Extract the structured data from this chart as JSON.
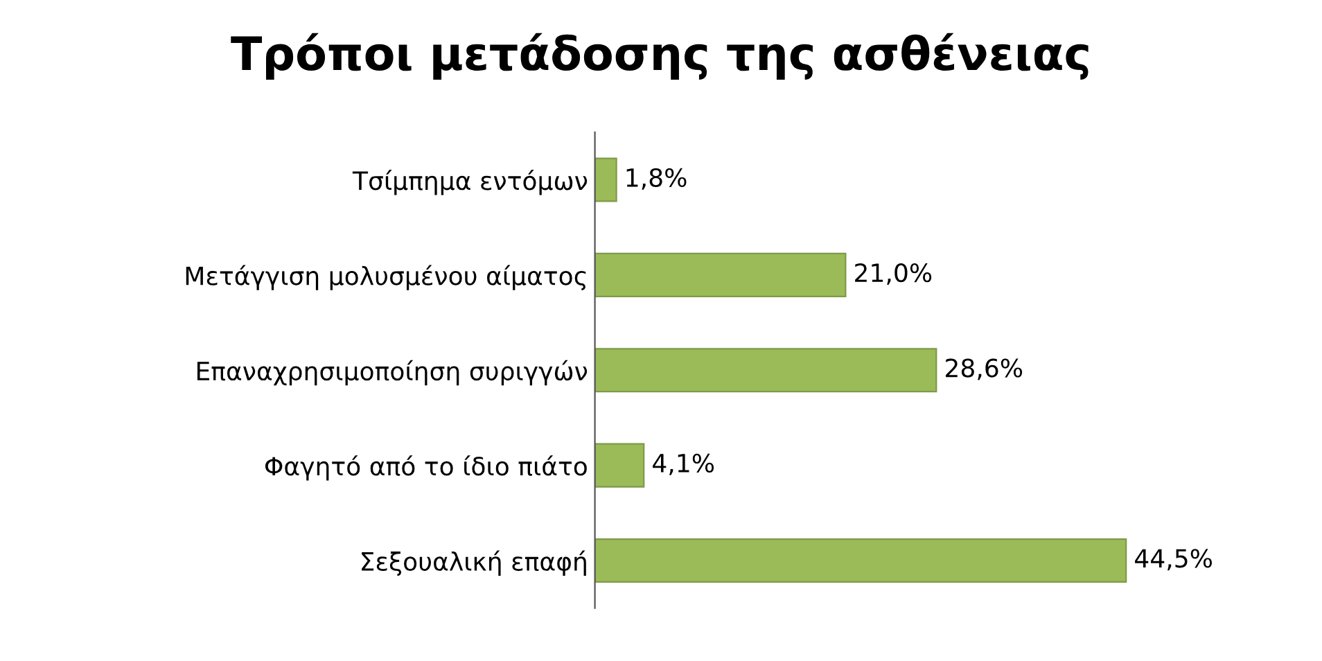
{
  "chart_data": {
    "type": "bar",
    "orientation": "horizontal",
    "title": "Τρόποι μετάδοσης της ασθένειας",
    "categories": [
      "Τσίμπημα εντόμων",
      "Μετάγγιση μολυσμένου αίματος",
      "Επαναχρησιμοποίηση συριγγών",
      "Φαγητό από το ίδιο πιάτο",
      "Σεξουαλική επαφή"
    ],
    "values": [
      1.8,
      21.0,
      28.6,
      4.1,
      44.5
    ],
    "value_labels": [
      "1,8%",
      "21,0%",
      "28,6%",
      "4,1%",
      "44,5%"
    ],
    "color": "#9bbb59",
    "grid": false,
    "legend": false,
    "tick_labels": "y"
  }
}
